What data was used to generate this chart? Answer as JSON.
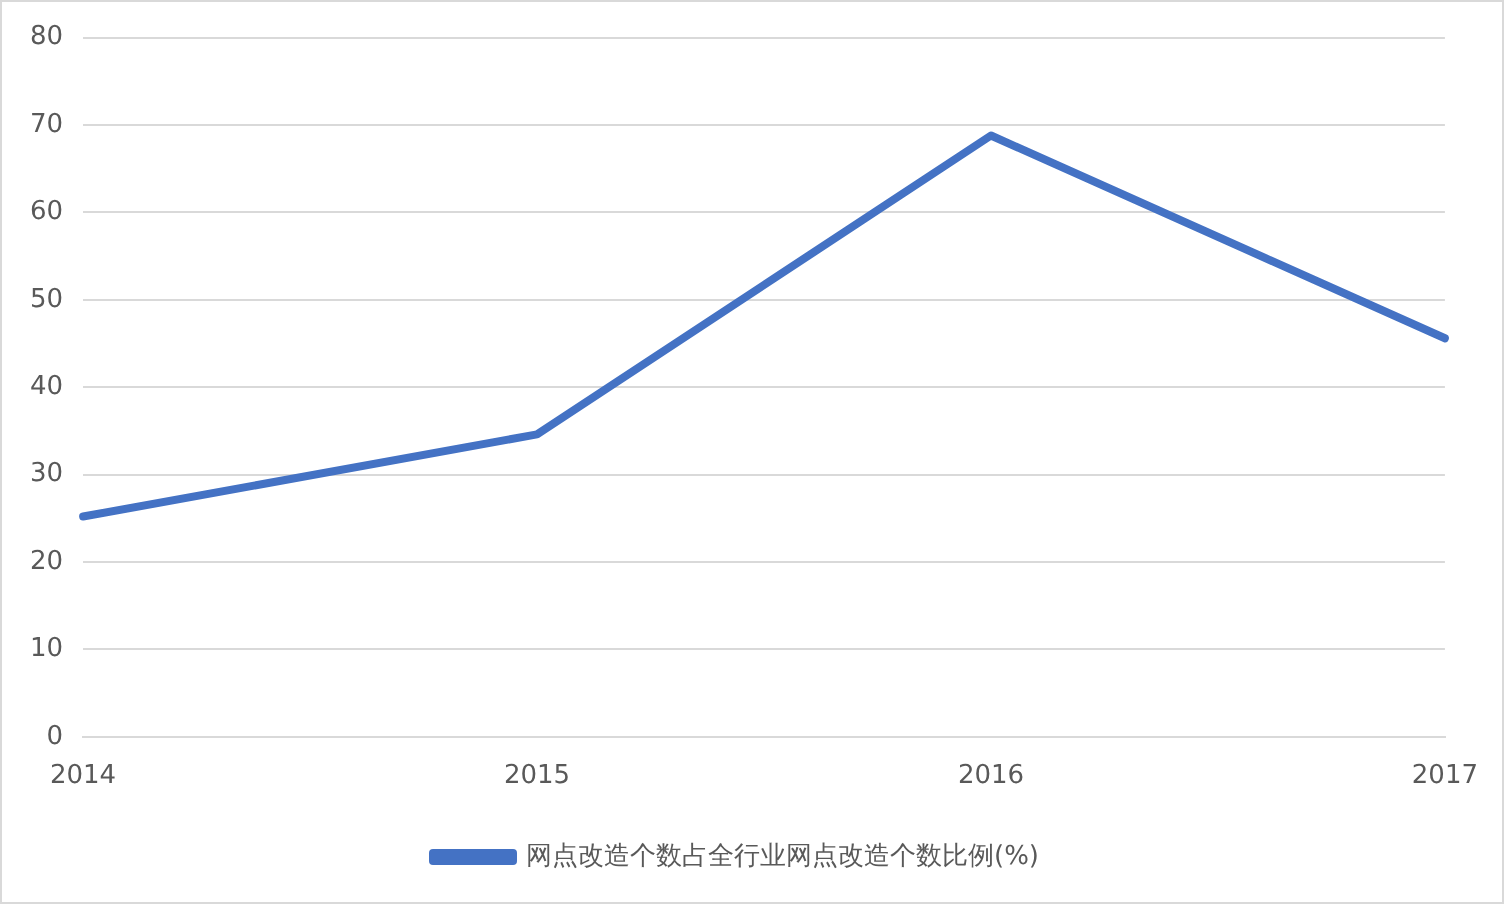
{
  "chart_data": {
    "type": "line",
    "categories": [
      "2014",
      "2015",
      "2016",
      "2017"
    ],
    "series": [
      {
        "name": "网点改造个数占全行业网点改造个数比例(%)",
        "color": "#4472c4",
        "values": [
          25.2,
          34.6,
          68.8,
          45.6
        ]
      }
    ],
    "ylim": [
      0,
      80
    ],
    "yticks": [
      0,
      10,
      20,
      30,
      40,
      50,
      60,
      70,
      80
    ],
    "grid": "y",
    "legend": "bottom",
    "marker": "none",
    "line_style": "solid"
  }
}
